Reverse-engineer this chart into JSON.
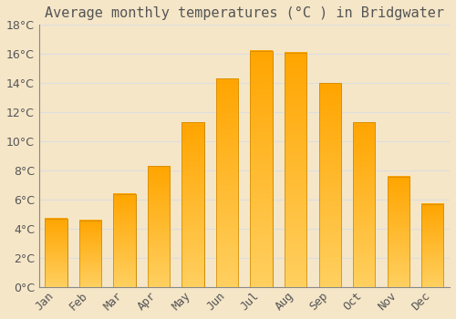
{
  "title": "Average monthly temperatures (°C ) in Bridgwater",
  "months": [
    "Jan",
    "Feb",
    "Mar",
    "Apr",
    "May",
    "Jun",
    "Jul",
    "Aug",
    "Sep",
    "Oct",
    "Nov",
    "Dec"
  ],
  "values": [
    4.7,
    4.6,
    6.4,
    8.3,
    11.3,
    14.3,
    16.2,
    16.1,
    14.0,
    11.3,
    7.6,
    5.7
  ],
  "bar_color": "#FFA500",
  "bar_color_light": "#FFD060",
  "bar_edge_color": "#CC8800",
  "background_color": "#F5E6C8",
  "grid_color": "#DDDDDD",
  "text_color": "#555555",
  "ylim": [
    0,
    18
  ],
  "yticks": [
    0,
    2,
    4,
    6,
    8,
    10,
    12,
    14,
    16,
    18
  ],
  "title_fontsize": 11,
  "tick_fontsize": 9
}
